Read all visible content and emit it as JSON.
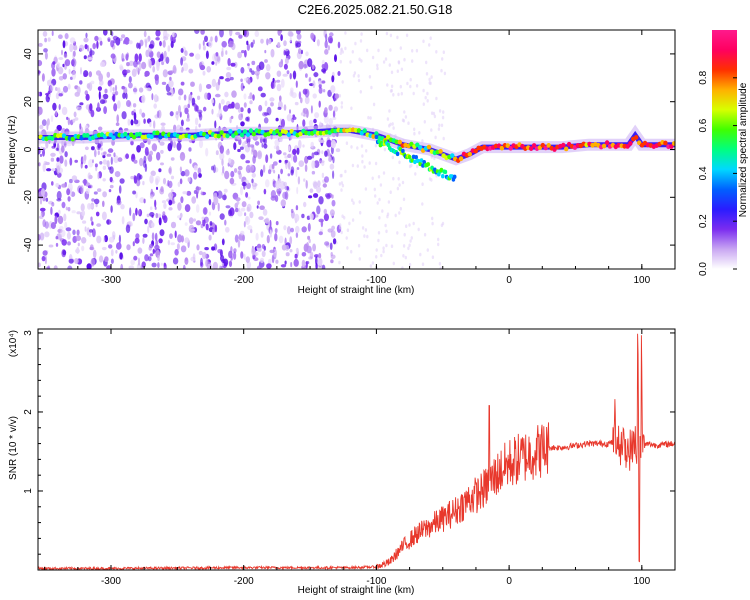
{
  "title": "C2E6.2025.082.21.50.G18",
  "chart_data": [
    {
      "type": "heatmap",
      "xlabel": "Height of straight line (km)",
      "ylabel": "Frequency (Hz)",
      "xlim": [
        -355,
        125
      ],
      "ylim": [
        -50,
        50
      ],
      "xticks": [
        -300,
        -200,
        -100,
        0,
        100
      ],
      "yticks": [
        -40,
        -20,
        0,
        20,
        40
      ],
      "colorbar": {
        "label": "Normalized spectral amplitude",
        "range": [
          0,
          1
        ],
        "ticks": [
          "0.0",
          "0.2",
          "0.4",
          "0.6",
          "0.8"
        ],
        "colors": [
          "#ffffff",
          "#c9a6f2",
          "#7a2cf0",
          "#2a1cff",
          "#0060ff",
          "#00d8ff",
          "#00ff80",
          "#40ff00",
          "#d8ff00",
          "#ffb000",
          "#ff3000",
          "#ff0060",
          "#ff1a8c"
        ]
      },
      "ridge": {
        "x": [
          -355,
          -320,
          -280,
          -240,
          -200,
          -160,
          -130,
          -120,
          -110,
          -100,
          -90,
          -80,
          -70,
          -60,
          -50,
          -40,
          -30,
          -20,
          -10,
          0,
          20,
          40,
          60,
          80,
          90,
          95,
          100,
          125
        ],
        "y": [
          5,
          5,
          6,
          6,
          7,
          7,
          8,
          8,
          7,
          6,
          4,
          2,
          1,
          0,
          -2,
          -4,
          -2,
          1,
          1,
          1,
          1,
          1,
          2,
          2,
          2,
          6,
          2,
          2
        ]
      }
    },
    {
      "type": "line",
      "xlabel": "Height of straight line (km)",
      "ylabel": "SNR (10 * v/v)",
      "multiplier": "(x10⁴)",
      "xlim": [
        -355,
        125
      ],
      "ylim": [
        0,
        3.05
      ],
      "xticks": [
        -300,
        -200,
        -100,
        0,
        100
      ],
      "yticks": [
        1,
        2,
        3
      ],
      "color": "#e8382c",
      "series": [
        {
          "x": [
            -355,
            -300,
            -200,
            -120,
            -100,
            -90,
            -80,
            -70,
            -60,
            -50,
            -40,
            -30,
            -20,
            -15,
            -10,
            0,
            20,
            30,
            40,
            60,
            75,
            80,
            85,
            90,
            95,
            100,
            105,
            110,
            125
          ],
          "values": [
            0.02,
            0.02,
            0.03,
            0.03,
            0.04,
            0.1,
            0.3,
            0.45,
            0.55,
            0.65,
            0.75,
            0.9,
            1.0,
            1.1,
            1.2,
            1.35,
            1.5,
            1.55,
            1.55,
            1.6,
            1.6,
            1.62,
            1.6,
            1.5,
            1.6,
            1.55,
            1.6,
            1.58,
            1.6
          ]
        }
      ],
      "spikes": [
        {
          "x": -15,
          "value": 2.08
        },
        {
          "x": 80,
          "value": 2.12
        },
        {
          "x": 97,
          "value": 2.9
        },
        {
          "x": 100,
          "value": 2.8
        },
        {
          "x": 98,
          "value": 0.15
        }
      ]
    }
  ]
}
